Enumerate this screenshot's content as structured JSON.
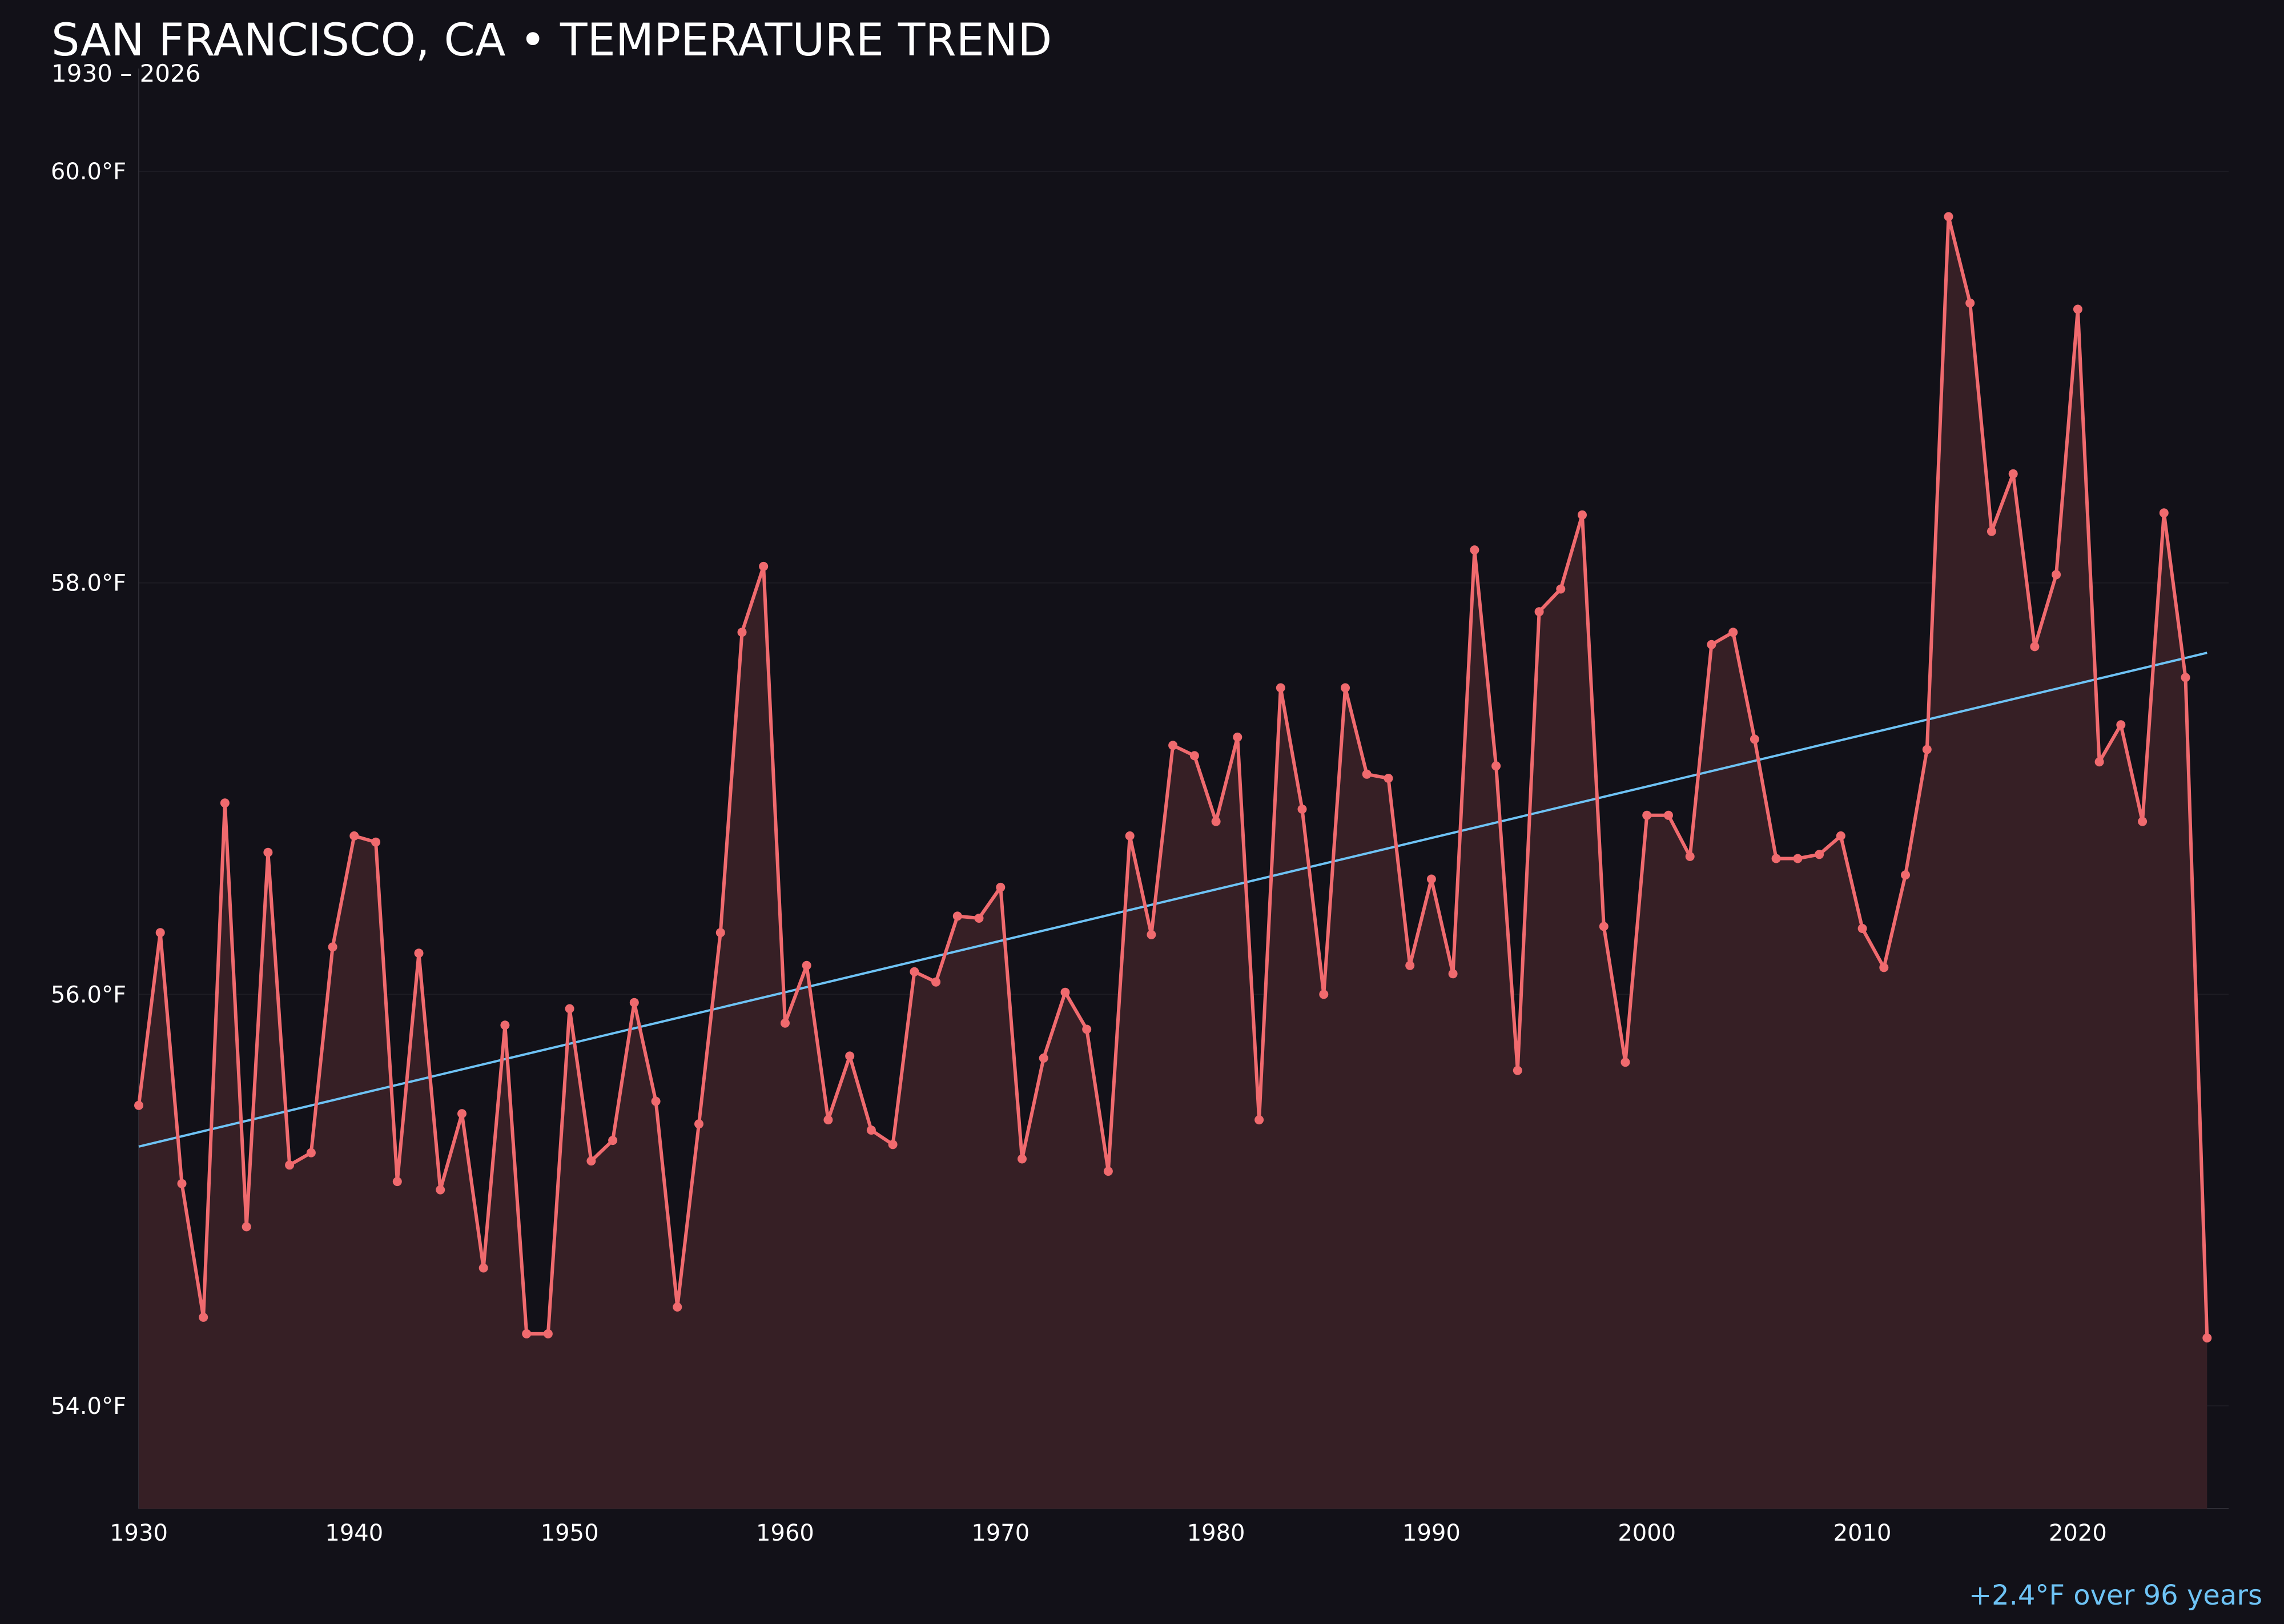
{
  "chart_data": {
    "type": "line",
    "title": "SAN FRANCISCO, CA • TEMPERATURE TREND",
    "subtitle": "1930 – 2026",
    "annotation": "+2.4°F over 96 years",
    "xlabel": "",
    "ylabel": "",
    "xlim": [
      1930,
      2027
    ],
    "ylim": [
      53.5,
      60.5
    ],
    "x_ticks": [
      1930,
      1940,
      1950,
      1960,
      1970,
      1980,
      1990,
      2000,
      2010,
      2020
    ],
    "x_tick_labels": [
      "1930",
      "1940",
      "1950",
      "1960",
      "1970",
      "1980",
      "1990",
      "2000",
      "2010",
      "2020"
    ],
    "y_ticks": [
      54.0,
      56.0,
      58.0,
      60.0
    ],
    "y_tick_labels": [
      "54.0°F",
      "56.0°F",
      "58.0°F",
      "60.0°F"
    ],
    "grid": "horizontal",
    "colors": {
      "background": "#121118",
      "series": "#f06a6e",
      "area_fill": "#361f25",
      "trend": "#6ec3f5",
      "grid": "#1d1c23",
      "axis": "#2e2d35",
      "text": "#ffffff"
    },
    "series": [
      {
        "x": [
          1930,
          1931,
          1932,
          1933,
          1934,
          1935,
          1936,
          1937,
          1938,
          1939,
          1940,
          1941,
          1942,
          1943,
          1944,
          1945,
          1946,
          1947,
          1948,
          1949,
          1950,
          1951,
          1952,
          1953,
          1954,
          1955,
          1956,
          1957,
          1958,
          1959,
          1960,
          1961,
          1962,
          1963,
          1964,
          1965,
          1966,
          1967,
          1968,
          1969,
          1970,
          1971,
          1972,
          1973,
          1974,
          1975,
          1976,
          1977,
          1978,
          1979,
          1980,
          1981,
          1982,
          1983,
          1984,
          1985,
          1986,
          1987,
          1988,
          1989,
          1990,
          1991,
          1992,
          1993,
          1994,
          1995,
          1996,
          1997,
          1998,
          1999,
          2000,
          2001,
          2002,
          2003,
          2004,
          2005,
          2006,
          2007,
          2008,
          2009,
          2010,
          2011,
          2012,
          2013,
          2014,
          2015,
          2016,
          2017,
          2018,
          2019,
          2020,
          2021,
          2022,
          2023,
          2024,
          2025,
          2026
        ],
        "values": [
          55.46,
          56.3,
          55.08,
          54.43,
          56.93,
          54.87,
          56.69,
          55.17,
          55.23,
          56.23,
          56.77,
          56.74,
          55.09,
          56.2,
          55.05,
          55.42,
          54.67,
          55.85,
          54.35,
          54.35,
          55.93,
          55.19,
          55.29,
          55.96,
          55.48,
          54.48,
          55.37,
          56.3,
          57.76,
          58.08,
          55.86,
          56.14,
          55.39,
          55.7,
          55.34,
          55.27,
          56.11,
          56.06,
          56.38,
          56.37,
          56.52,
          55.2,
          55.69,
          56.01,
          55.83,
          55.14,
          56.77,
          56.29,
          57.21,
          57.16,
          56.84,
          57.25,
          55.39,
          57.49,
          56.9,
          56.0,
          57.49,
          57.07,
          57.05,
          56.14,
          56.56,
          56.1,
          58.16,
          57.11,
          55.63,
          57.86,
          57.97,
          58.33,
          56.33,
          55.67,
          56.87,
          56.87,
          56.67,
          57.7,
          57.76,
          57.24,
          56.66,
          56.66,
          56.68,
          56.77,
          56.32,
          56.13,
          56.58,
          57.19,
          59.78,
          59.36,
          58.25,
          58.53,
          57.69,
          58.04,
          59.33,
          57.13,
          57.31,
          56.84,
          58.34,
          57.54,
          54.33
        ]
      }
    ],
    "trend_line": {
      "x": [
        1930,
        2026
      ],
      "values": [
        55.26,
        57.66
      ]
    }
  }
}
